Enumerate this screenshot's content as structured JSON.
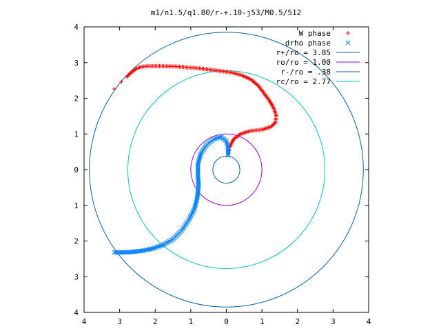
{
  "chart_data": {
    "type": "scatter",
    "title": "m1/n1.5/q1.80/r-+.10-j53/M0.5/512",
    "xlim": [
      -4,
      4
    ],
    "ylim": [
      -4,
      4
    ],
    "x_ticks": [
      -4,
      -3,
      -2,
      -1,
      0,
      1,
      2,
      3,
      4
    ],
    "x_tick_labels": [
      "4",
      "3",
      "2",
      "1",
      "0",
      "1",
      "2",
      "3",
      "4"
    ],
    "y_ticks": [
      4,
      3,
      2,
      1,
      0,
      -1,
      -2,
      -3,
      -4
    ],
    "y_tick_labels": [
      "4",
      "3",
      "2",
      "1",
      "0",
      "1",
      "2",
      "3",
      "4"
    ],
    "grid": false,
    "legend_position": "top-right",
    "series": [
      {
        "name": "W phase",
        "marker": "+",
        "color": "#ff0000",
        "points": [
          [
            -3.15,
            2.26
          ],
          [
            -2.95,
            2.46
          ],
          [
            -2.8,
            2.6
          ],
          [
            -2.7,
            2.7
          ],
          [
            -2.55,
            2.82
          ],
          [
            -2.4,
            2.88
          ],
          [
            -2.2,
            2.9
          ],
          [
            -1.8,
            2.9
          ],
          [
            -1.4,
            2.89
          ],
          [
            -1.0,
            2.86
          ],
          [
            -0.6,
            2.82
          ],
          [
            -0.2,
            2.77
          ],
          [
            0.15,
            2.72
          ],
          [
            0.45,
            2.64
          ],
          [
            0.7,
            2.52
          ],
          [
            0.9,
            2.35
          ],
          [
            1.05,
            2.15
          ],
          [
            1.2,
            1.95
          ],
          [
            1.32,
            1.75
          ],
          [
            1.4,
            1.52
          ],
          [
            1.38,
            1.32
          ],
          [
            1.25,
            1.2
          ],
          [
            1.0,
            1.12
          ],
          [
            0.65,
            1.08
          ],
          [
            0.4,
            1.0
          ],
          [
            0.2,
            0.85
          ],
          [
            0.1,
            0.65
          ],
          [
            0.05,
            0.45
          ]
        ]
      },
      {
        "name": "drho phase",
        "marker": "x",
        "color": "#0080ff",
        "points": [
          [
            0.05,
            0.4
          ],
          [
            0.05,
            0.6
          ],
          [
            0.0,
            0.8
          ],
          [
            -0.15,
            0.92
          ],
          [
            -0.35,
            0.85
          ],
          [
            -0.55,
            0.7
          ],
          [
            -0.72,
            0.45
          ],
          [
            -0.8,
            0.15
          ],
          [
            -0.8,
            -0.15
          ],
          [
            -0.78,
            -0.45
          ],
          [
            -0.82,
            -0.8
          ],
          [
            -0.9,
            -1.1
          ],
          [
            -1.05,
            -1.4
          ],
          [
            -1.25,
            -1.7
          ],
          [
            -1.5,
            -1.95
          ],
          [
            -1.8,
            -2.12
          ],
          [
            -2.1,
            -2.22
          ],
          [
            -2.4,
            -2.28
          ],
          [
            -2.7,
            -2.31
          ],
          [
            -3.0,
            -2.32
          ],
          [
            -3.15,
            -2.32
          ]
        ]
      }
    ],
    "circles": [
      {
        "name": "r+/ro = 3.85",
        "r": 3.85,
        "color": "#0060ad"
      },
      {
        "name": "ro/ro = 1.00",
        "r": 1.0,
        "color": "#9400d3"
      },
      {
        "name": "r-/ro = .38",
        "r": 0.38,
        "color": "#0060ad"
      },
      {
        "name": "rc/ro = 2.77",
        "r": 2.77,
        "color": "#00c0c0"
      }
    ]
  }
}
